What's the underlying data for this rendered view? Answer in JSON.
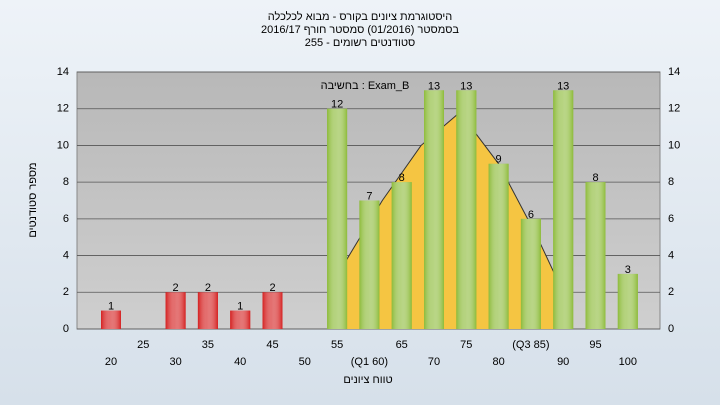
{
  "chart_data": {
    "type": "bar",
    "title": "היסטוגרמת ציונים בקורס - מבוא לכלכלה",
    "subtitle": "בסמסטר (01/2016) סמסטר חורף 2016/17",
    "subtitle2": "סטודנטים רשומים - 255",
    "annotation": "Exam_B : בחשיבה",
    "x_label": "טווח ציונים",
    "y_label": "מספר סטודנטים",
    "categories": [
      "20",
      "25",
      "30",
      "35",
      "40",
      "45",
      "50",
      "55",
      "(Q1 60)",
      "65",
      "70",
      "75",
      "80",
      "(Q3 85)",
      "90",
      "95",
      "100"
    ],
    "values": [
      1,
      0,
      2,
      2,
      1,
      2,
      0,
      12,
      7,
      8,
      13,
      13,
      9,
      6,
      13,
      8,
      3
    ],
    "colors": [
      "#d42020",
      "#d42020",
      "#d42020",
      "#d42020",
      "#d42020",
      "#d42020",
      "#d42020",
      "#8dbb3a",
      "#8dbb3a",
      "#8dbb3a",
      "#8dbb3a",
      "#8dbb3a",
      "#8dbb3a",
      "#8dbb3a",
      "#8dbb3a",
      "#8dbb3a",
      "#8dbb3a"
    ],
    "curve": {
      "color": "#f5c542",
      "x": [
        56,
        62,
        68,
        74,
        80,
        86,
        90
      ],
      "values": [
        3.5,
        7,
        10,
        11.8,
        9,
        5,
        2
      ]
    },
    "ylim": [
      0,
      14
    ],
    "yticks": [
      0,
      2,
      4,
      6,
      8,
      10,
      12,
      14
    ]
  }
}
